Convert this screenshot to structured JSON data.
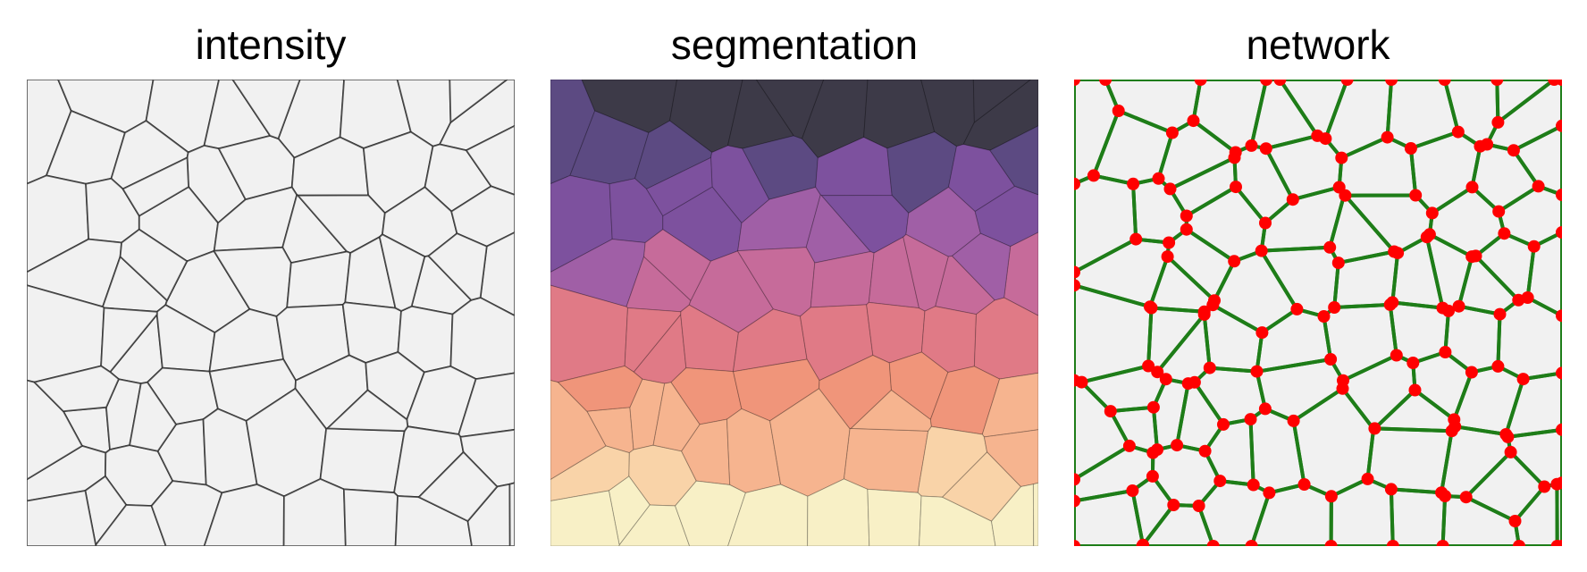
{
  "panels": [
    {
      "id": "intensity",
      "title": "intensity"
    },
    {
      "id": "segmentation",
      "title": "segmentation"
    },
    {
      "id": "network",
      "title": "network"
    }
  ],
  "colors": {
    "background": "#ffffff",
    "cell_interior": "#f1f1f1",
    "cell_membrane": "#1f1f1f",
    "network_edge": "#1e7d18",
    "network_node": "#ff0000",
    "segmentation_colormap": [
      "#3d3a48",
      "#5c4a82",
      "#7d519e",
      "#a05fa6",
      "#c66b9a",
      "#e07a86",
      "#f0957a",
      "#f6b48f",
      "#f9d3a8",
      "#f8f0c6"
    ]
  },
  "icons": {
    "intensity": "microscopy-cell-membrane-image",
    "segmentation": "segmentation-label-overlay",
    "network": "cell-junction-network-graph"
  }
}
